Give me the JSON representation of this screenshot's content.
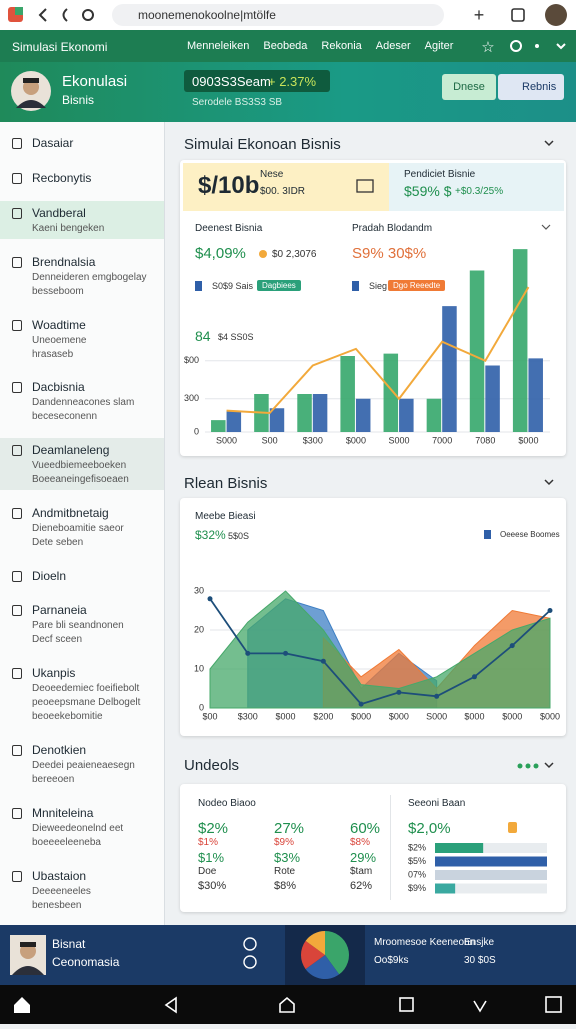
{
  "browser": {
    "url": "moonemenokoolne|mtölfe"
  },
  "header": {
    "brand": "Simulasi Ekonomi",
    "nav": [
      "Menneleiken",
      "Beobeda",
      "Rekonia",
      "Adeser",
      "Agiter"
    ]
  },
  "profile": {
    "title": "Ekonulasi",
    "subtitle": "Bisnis",
    "ticker": "0903S3Seam",
    "change": "+ 2.37%",
    "ticker_note": "Serodele  BS3S3  SB",
    "buttons": [
      "Dnese",
      "Rebnis"
    ]
  },
  "sidebar": {
    "items": [
      {
        "label": "Dasaiar"
      },
      {
        "label": "Recbonytis"
      },
      {
        "label": "Vandberal",
        "lines": [
          "Kaeni bengeken"
        ]
      },
      {
        "label": "Brendnalsia",
        "lines": [
          "Denneideren emgbogelay",
          "besseboom"
        ]
      },
      {
        "label": "Woadtime",
        "lines": [
          "Uneoemene",
          "hrasaseb"
        ]
      },
      {
        "label": "Dacbisnia",
        "lines": [
          "Dandenneacones slam",
          "beceseconenn"
        ]
      },
      {
        "label": "Deamlaneleng",
        "lines": [
          "Vueedbiemeeboeken",
          "Boeeaneingefisoeaen"
        ]
      },
      {
        "label": "Andmitbnetaig",
        "lines": [
          "Dieneboamitie saeor",
          "Dete seben"
        ]
      },
      {
        "label": "Dioeln"
      },
      {
        "label": "Parnaneia",
        "lines": [
          "Pare bli seandnonen",
          "Decf sceen"
        ]
      },
      {
        "label": "Ukanpis",
        "lines": [
          "Deoeedemiec foeifiebolt",
          "peoeepsmane Delbogelt",
          "beoeekebomitie"
        ]
      },
      {
        "label": "Denotkien",
        "lines": [
          "Deedei peaieneaesegn",
          "bereeoen"
        ]
      },
      {
        "label": "Mnniteleina",
        "lines": [
          "Dieweedeonelnd eet",
          "boeeeeleeneba"
        ]
      },
      {
        "label": "Ubastaion",
        "lines": [
          "Deeeeneeles",
          "benesbeen"
        ]
      }
    ]
  },
  "sections": [
    {
      "title": "Simulai Ekonoan Bisnis"
    },
    {
      "title": "Rlean Bisnis"
    },
    {
      "title": "Undeols"
    }
  ],
  "kpi": {
    "value": "$/10b",
    "label": "Nese",
    "note": "$00. 3IDR",
    "right_title": "Pendiciet  Bisnie",
    "right_value": "$59% $",
    "right_change": "+$0.3/25%"
  },
  "panel1": {
    "left": {
      "title": "Deenest Bisnia",
      "value": "$4,09%",
      "note": "$0 2,3076",
      "legend": "S0$9  Sais",
      "chip": "Dagbiees"
    },
    "right": {
      "title": "Pradah Blodandm",
      "value": "S9% 30$%",
      "legend": "Sieg",
      "chip": "Dgo Reeedte"
    },
    "sub_value": "84",
    "sub_note": "$4 SS0S"
  },
  "panel2": {
    "title": "Meebe Bieasi",
    "value": "$32%",
    "note": "5$0S"
  },
  "table": {
    "title": "Nodeo Biaoo",
    "rows": [
      [
        "$2%",
        "27%",
        "60%"
      ],
      [
        "$1%",
        "$9%",
        "$8%"
      ],
      [
        "$1%",
        "$3%",
        "29%"
      ],
      [
        "Doe",
        "Rote",
        "$tam"
      ],
      [
        "$30%",
        "$8%",
        "62%"
      ]
    ]
  },
  "bottom": {
    "name": "Bisnat",
    "role": "Ceonomasia",
    "right_title": "Mroomesoe Keeneonn",
    "right_tag": "Ensjke",
    "right_a": "Oo$9ks",
    "right_b": "30 $0S"
  },
  "chart_data": [
    {
      "type": "bar",
      "categories": [
        "S000",
        "S00",
        "$300",
        "$000",
        "S000",
        "7000",
        "7080",
        "$000"
      ],
      "series": [
        {
          "color": "#35a76b",
          "values": [
            25,
            80,
            80,
            160,
            165,
            70,
            340,
            385
          ]
        },
        {
          "color": "#2f5fa8",
          "values": [
            45,
            50,
            80,
            70,
            70,
            265,
            140,
            155
          ]
        },
        {
          "type": "line",
          "color": "#f2a93b",
          "values": [
            45,
            40,
            140,
            175,
            70,
            190,
            150,
            305
          ]
        }
      ],
      "ylim": [
        0,
        400
      ],
      "yticks": [
        0,
        {
          "value": 70,
          "label": "300"
        },
        {
          "value": 150,
          "label": "$00"
        }
      ],
      "grid": true
    },
    {
      "type": "area",
      "categories": [
        "$00",
        "$300",
        "$000",
        "$200",
        "$000",
        "$000",
        "S000",
        "$000",
        "$000",
        "$000"
      ],
      "series": [
        {
          "name": "Oeeese Boomes",
          "color": "#3d7fc4",
          "values": [
            null,
            20,
            28,
            25,
            5,
            14,
            7,
            null,
            null,
            null
          ]
        },
        {
          "color": "#f07a35",
          "values": [
            null,
            null,
            null,
            18,
            8,
            15,
            5,
            16,
            25,
            23
          ]
        },
        {
          "color": "#46a86a",
          "values": [
            10,
            22,
            30,
            20,
            6,
            5,
            8,
            14,
            20,
            23
          ]
        },
        {
          "type": "line",
          "color": "#1d4e7a",
          "values": [
            28,
            14,
            14,
            12,
            1,
            4,
            3,
            8,
            16,
            25
          ]
        }
      ],
      "ylim": [
        0,
        35
      ],
      "yticks": [
        0,
        10,
        20,
        30
      ],
      "grid": true
    },
    {
      "type": "pie",
      "values": [
        40,
        25,
        20,
        15
      ],
      "colors": [
        "#3aa56a",
        "#2f5fa8",
        "#d9453a",
        "#f2a93b"
      ]
    },
    {
      "type": "hbar",
      "title": "Seeoni Baan",
      "value": "$2,0%",
      "categories": [
        "$2%",
        "$5%",
        "07%",
        "$9%"
      ],
      "values": [
        43,
        100,
        100,
        18
      ],
      "colors": [
        "#2aa07a",
        "#2f5fa8",
        "#c9d3de",
        "#3aa9a0"
      ],
      "xlim": [
        0,
        100
      ]
    }
  ]
}
